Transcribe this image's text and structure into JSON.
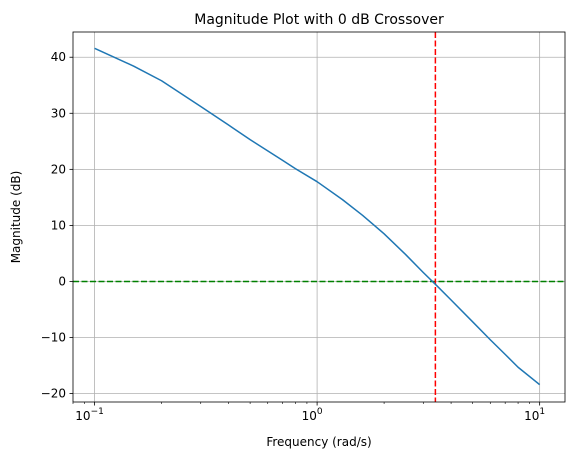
{
  "chart_data": {
    "type": "line",
    "title": "Magnitude Plot with 0 dB Crossover",
    "xlabel": "Frequency (rad/s)",
    "ylabel": "Magnitude (dB)",
    "xscale": "log",
    "xlim": [
      0.08,
      13
    ],
    "ylim": [
      -21.5,
      44.5
    ],
    "grid": true,
    "x_ticks": [
      {
        "value": 0.1,
        "base": "10",
        "exp": "−1"
      },
      {
        "value": 1,
        "base": "10",
        "exp": "0"
      },
      {
        "value": 10,
        "base": "10",
        "exp": "1"
      }
    ],
    "y_ticks": [
      {
        "value": -20,
        "label": "−20"
      },
      {
        "value": -10,
        "label": "−10"
      },
      {
        "value": 0,
        "label": "0"
      },
      {
        "value": 10,
        "label": "10"
      },
      {
        "value": 20,
        "label": "20"
      },
      {
        "value": 30,
        "label": "30"
      },
      {
        "value": 40,
        "label": "40"
      }
    ],
    "series": [
      {
        "color": "#1f77b4",
        "x": [
          0.1,
          0.15,
          0.2,
          0.3,
          0.4,
          0.5,
          0.6,
          0.7,
          0.8,
          1.0,
          1.3,
          1.6,
          2.0,
          2.5,
          3.0,
          3.5,
          4.0,
          5.0,
          6.0,
          7.0,
          8.0,
          10.0
        ],
        "y": [
          41.6,
          38.4,
          35.8,
          31.2,
          27.9,
          25.3,
          23.3,
          21.6,
          20.1,
          17.8,
          14.6,
          11.8,
          8.5,
          4.8,
          1.6,
          -1.0,
          -3.3,
          -7.2,
          -10.4,
          -13.0,
          -15.3,
          -18.4
        ]
      }
    ],
    "reference_lines": [
      {
        "orientation": "horizontal",
        "value": 0,
        "color": "#008000",
        "style": "dashed"
      },
      {
        "orientation": "vertical",
        "value": 3.4,
        "color": "#ff0000",
        "style": "dashed"
      }
    ]
  }
}
